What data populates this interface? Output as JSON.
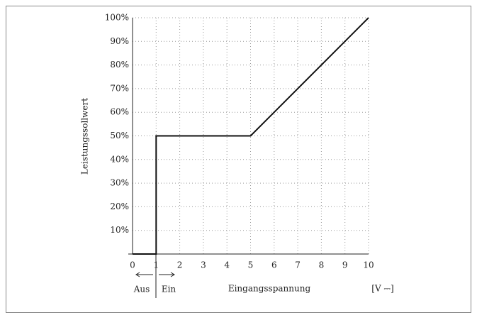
{
  "chart_data": {
    "type": "line",
    "y_label": "Leistungssollwert",
    "x_label": "Eingangsspannung",
    "unit_label": "[V ⎓]",
    "annotations": [
      "Aus",
      "Ein"
    ],
    "x": [
      0,
      1,
      1,
      5,
      10
    ],
    "values": [
      0,
      0,
      50,
      50,
      100
    ],
    "color": "#111111",
    "xlim": [
      0,
      10
    ],
    "xticks": [
      0,
      1,
      2,
      3,
      4,
      5,
      6,
      7,
      8,
      9,
      10
    ],
    "ylim": [
      0,
      100
    ],
    "yticks": [
      {
        "value": 10,
        "label": "10%"
      },
      {
        "value": 20,
        "label": "20%"
      },
      {
        "value": 30,
        "label": "30%"
      },
      {
        "value": 40,
        "label": "40%"
      },
      {
        "value": 50,
        "label": "50%"
      },
      {
        "value": 60,
        "label": "60%"
      },
      {
        "value": 70,
        "label": "70%"
      },
      {
        "value": 80,
        "label": "80%"
      },
      {
        "value": 90,
        "label": "90%"
      },
      {
        "value": 100,
        "label": "100%"
      }
    ],
    "grid": true
  }
}
